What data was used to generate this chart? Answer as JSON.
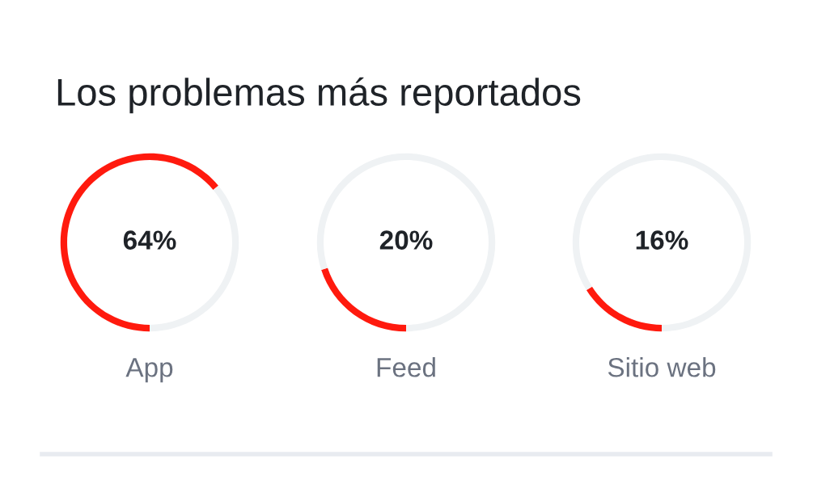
{
  "chart_data": [
    {
      "type": "donut",
      "title": "Los problemas más reportados",
      "categories": [
        "App",
        null
      ],
      "values": [
        64,
        36
      ],
      "colors": [
        "#ff1a0e",
        "#eff2f4"
      ],
      "annotations": [
        "64%"
      ]
    },
    {
      "type": "donut",
      "categories": [
        "Feed",
        null
      ],
      "values": [
        20,
        80
      ],
      "colors": [
        "#ff1a0e",
        "#eff2f4"
      ],
      "annotations": [
        "20%"
      ]
    },
    {
      "type": "donut",
      "categories": [
        "Sitio web",
        null
      ],
      "values": [
        16,
        84
      ],
      "colors": [
        "#ff1a0e",
        "#eff2f4"
      ],
      "annotations": [
        "16%"
      ]
    }
  ]
}
